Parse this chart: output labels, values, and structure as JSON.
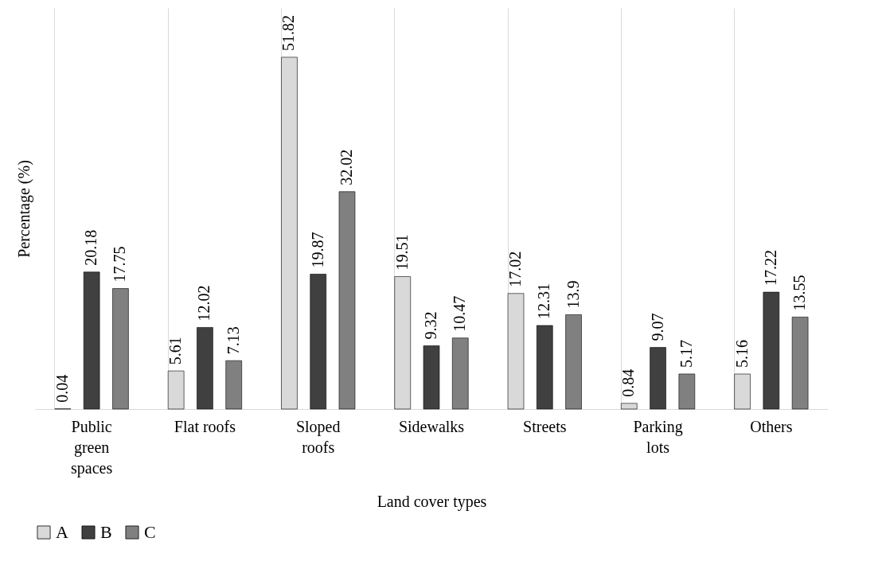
{
  "chart_data": {
    "type": "bar",
    "xlabel": "Land cover types",
    "ylabel": "Percentage (%)",
    "categories": [
      "Public green spaces",
      "Flat roofs",
      "Sloped roofs",
      "Sidewalks",
      "Streets",
      "Parking lots",
      "Others"
    ],
    "series": [
      {
        "name": "A",
        "color": "#d9d9d9",
        "values": [
          0.04,
          5.61,
          51.82,
          19.51,
          17.02,
          0.84,
          5.16
        ]
      },
      {
        "name": "B",
        "color": "#404040",
        "values": [
          20.18,
          12.02,
          19.87,
          9.32,
          12.31,
          9.07,
          17.22
        ]
      },
      {
        "name": "C",
        "color": "#808080",
        "values": [
          17.75,
          7.13,
          32.02,
          10.47,
          13.9,
          5.17,
          13.55
        ]
      }
    ],
    "data_labels": true,
    "grid": "x",
    "legend": "bottom",
    "tick_labels": "x"
  }
}
